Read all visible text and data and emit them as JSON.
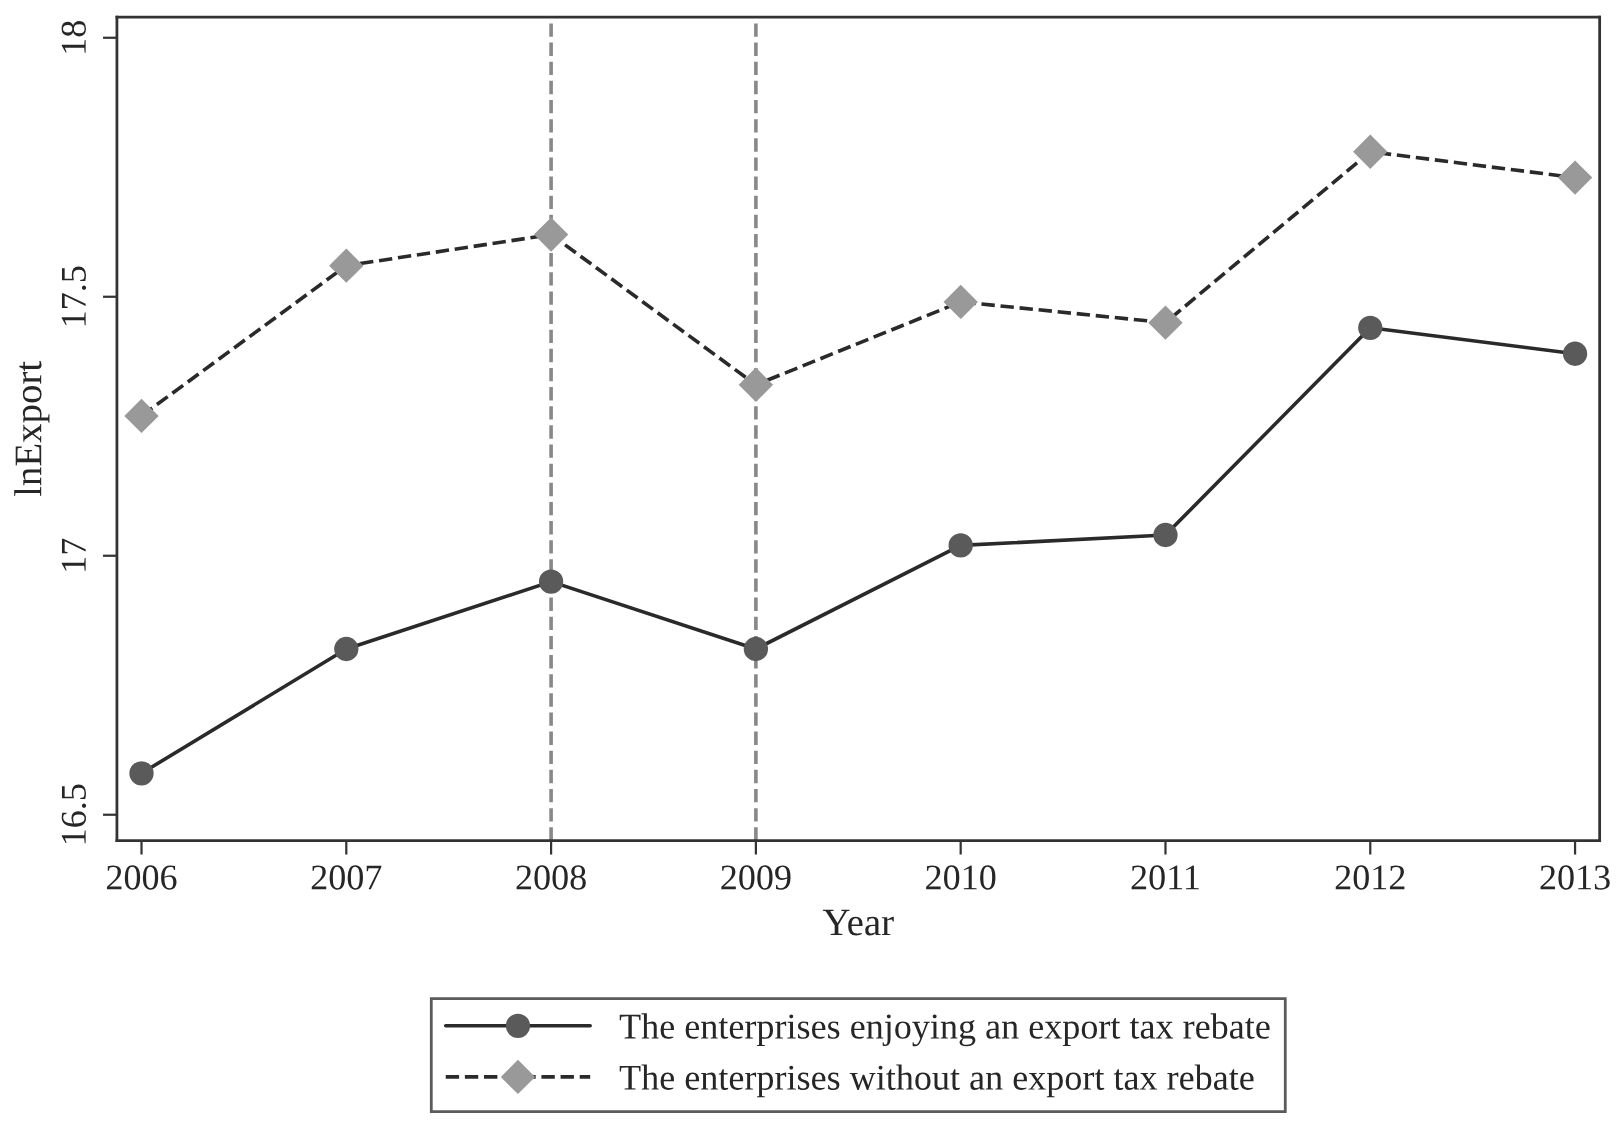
{
  "chart_data": {
    "type": "line",
    "xlabel": "Year",
    "ylabel": "lnExport",
    "x": [
      2006,
      2007,
      2008,
      2009,
      2010,
      2011,
      2012,
      2013
    ],
    "series": [
      {
        "name": "The enterprises enjoying an export tax rebate",
        "color": "#5a5a5a",
        "marker": "circle",
        "line_style": "solid",
        "values": [
          16.58,
          16.82,
          16.95,
          16.82,
          17.02,
          17.04,
          17.44,
          17.39
        ]
      },
      {
        "name": "The enterprises without an export tax rebate",
        "color": "#999999",
        "marker": "diamond",
        "line_style": "dashed",
        "values": [
          17.27,
          17.56,
          17.62,
          17.33,
          17.49,
          17.45,
          17.78,
          17.73
        ]
      }
    ],
    "xlim": [
      2005.88,
      2013.12
    ],
    "xticks": [
      2006,
      2007,
      2008,
      2009,
      2010,
      2011,
      2012,
      2013
    ],
    "ylim": [
      16.45,
      18.04
    ],
    "yticks": [
      16.5,
      17,
      17.5,
      18
    ],
    "ref_lines": [
      {
        "axis": "x",
        "value": 2008,
        "color": "#888888",
        "line_style": "dashed"
      },
      {
        "axis": "x",
        "value": 2009,
        "color": "#888888",
        "line_style": "dashed"
      }
    ],
    "grid": false,
    "legend": "bottom"
  }
}
